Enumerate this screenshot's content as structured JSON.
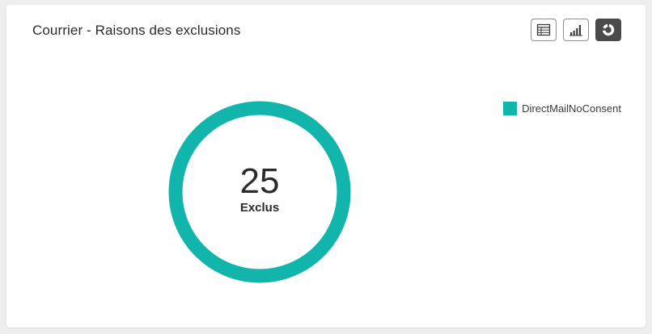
{
  "card": {
    "title": "Courrier - Raisons des exclusions"
  },
  "view_buttons": [
    {
      "icon": "table-icon",
      "active": false
    },
    {
      "icon": "bar-chart-icon",
      "active": false
    },
    {
      "icon": "donut-chart-icon",
      "active": true
    }
  ],
  "donut": {
    "center_value": "25",
    "center_label": "Exclus"
  },
  "chart_data": {
    "type": "pie",
    "categories": [
      "DirectMailNoConsent"
    ],
    "values": [
      25
    ],
    "colors": [
      "#12b5ac"
    ],
    "legend": "top-right"
  },
  "legend": {
    "items": [
      {
        "label": "DirectMailNoConsent",
        "color": "#12b5ac"
      }
    ]
  }
}
